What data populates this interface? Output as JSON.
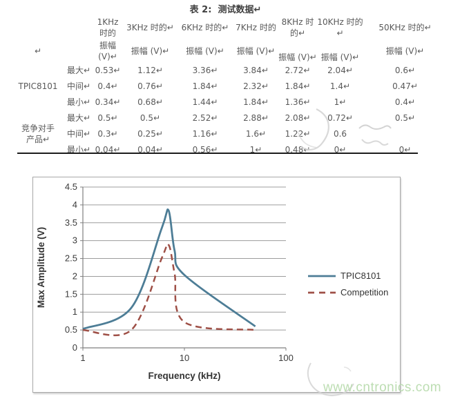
{
  "table": {
    "title": "表 2:  测试数据↵",
    "columns": [
      "1KHz 时的",
      "3KHz 时的↵",
      "6KHz 时的↵",
      "7KHz 时的",
      "8KHz 时的↵",
      "10KHz 时的↵",
      "50KHz 时的↵"
    ],
    "amp_header": "振幅 (V)↵",
    "leading_mark": "↵",
    "groups": [
      {
        "name_line1": "TPIC8101",
        "name_line2": "",
        "rows": [
          {
            "label": "最大↵",
            "values": [
              "0.53↵",
              "1.12↵",
              "3.36↵",
              "3.84↵",
              "2.72↵",
              "2.04↵",
              "0.6↵"
            ]
          },
          {
            "label": "中间↵",
            "values": [
              "0.4↵",
              "0.76↵",
              "1.84↵",
              "2.32↵",
              "1.84↵",
              "1.4↵",
              "0.47↵"
            ]
          },
          {
            "label": "最小↵",
            "values": [
              "0.34↵",
              "0.68↵",
              "1.44↵",
              "1.84↵",
              "1.36↵",
              "1↵",
              "0.4↵"
            ]
          }
        ]
      },
      {
        "name_line1": "竞争对手",
        "name_line2": "产品↵",
        "rows": [
          {
            "label": "最大↵",
            "values": [
              "0.5↵",
              "0.5↵",
              "2.52↵",
              "2.88↵",
              "2.08↵",
              "0.72↵",
              "0.5↵"
            ]
          },
          {
            "label": "中间↵",
            "values": [
              "0.3↵",
              "0.25↵",
              "1.16↵",
              "1.6↵",
              "1.22↵",
              "0.6",
              ""
            ]
          },
          {
            "label": "最小↵",
            "values": [
              "0.04↵",
              "0.04↵",
              "0.56↵",
              "1↵",
              "0.48↵",
              "0↵",
              "0↵"
            ]
          }
        ]
      }
    ]
  },
  "chart_data": {
    "type": "line",
    "title": "",
    "xlabel": "Frequency (kHz)",
    "ylabel": "Max Amplitude (V)",
    "x_scale": "log",
    "xlim": [
      1,
      100
    ],
    "ylim": [
      0,
      4.5
    ],
    "x_ticks": [
      1,
      10,
      100
    ],
    "y_ticks": [
      0,
      0.5,
      1,
      1.5,
      2,
      2.5,
      3,
      3.5,
      4,
      4.5
    ],
    "grid": "horizontal",
    "legend_position": "right",
    "smooth": true,
    "series": [
      {
        "name": "TPIC8101",
        "style": "solid",
        "color": "#4d7d96",
        "x": [
          1,
          3,
          6,
          7,
          8,
          10,
          50
        ],
        "y": [
          0.53,
          1.12,
          3.36,
          3.84,
          2.72,
          2.04,
          0.6
        ]
      },
      {
        "name": "Competition",
        "style": "dashed",
        "color": "#9e4f46",
        "x": [
          1,
          3,
          6,
          7,
          8,
          10,
          50
        ],
        "y": [
          0.5,
          0.5,
          2.52,
          2.88,
          2.08,
          0.72,
          0.5
        ]
      }
    ]
  },
  "watermark": {
    "url_text": "www.cntronics.com",
    "url_color": "#b9dcae",
    "stamp_color": "#cfcfcf"
  }
}
